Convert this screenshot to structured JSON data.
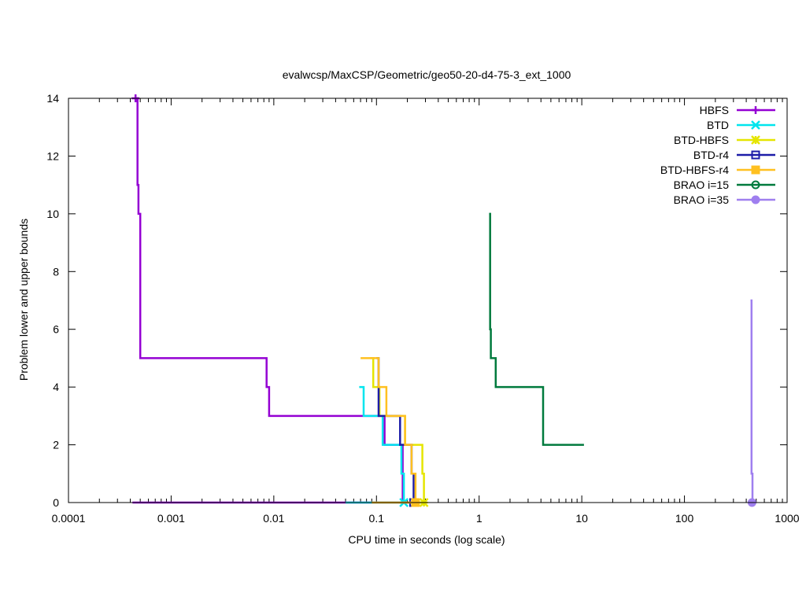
{
  "chart_data": {
    "type": "line",
    "title": "evalwcsp/MaxCSP/Geometric/geo50-20-d4-75-3_ext_1000",
    "xlabel": "CPU time in seconds (log scale)",
    "ylabel": "Problem lower and upper bounds",
    "xscale": "log",
    "xlim": [
      0.0001,
      1000
    ],
    "ylim": [
      0,
      14
    ],
    "xticks": [
      {
        "value": 0.0001,
        "label": "0.0001"
      },
      {
        "value": 0.001,
        "label": "0.001"
      },
      {
        "value": 0.01,
        "label": "0.01"
      },
      {
        "value": 0.1,
        "label": "0.1"
      },
      {
        "value": 1,
        "label": "1"
      },
      {
        "value": 10,
        "label": "10"
      },
      {
        "value": 100,
        "label": "100"
      },
      {
        "value": 1000,
        "label": "1000"
      }
    ],
    "yticks": [
      {
        "value": 0,
        "label": "0"
      },
      {
        "value": 2,
        "label": "2"
      },
      {
        "value": 4,
        "label": "4"
      },
      {
        "value": 6,
        "label": "6"
      },
      {
        "value": 8,
        "label": "8"
      },
      {
        "value": 10,
        "label": "10"
      },
      {
        "value": 12,
        "label": "12"
      },
      {
        "value": 14,
        "label": "14"
      }
    ],
    "grid": false,
    "legend_position": "top-right",
    "series": [
      {
        "name": "HBFS",
        "color": "#9400d3",
        "marker": "plus",
        "upper": [
          [
            0.00045,
            14
          ],
          [
            0.00047,
            11
          ],
          [
            0.00048,
            10
          ],
          [
            0.0005,
            5
          ],
          [
            0.0085,
            4
          ],
          [
            0.009,
            3
          ],
          [
            0.12,
            2
          ],
          [
            0.18,
            0
          ]
        ],
        "lower": [
          [
            0.00042,
            0
          ],
          [
            0.18,
            0
          ]
        ],
        "marker_point": [
          0.00045,
          14
        ]
      },
      {
        "name": "BTD",
        "color": "#00e5ee",
        "marker": "x",
        "upper": [
          [
            0.068,
            4
          ],
          [
            0.075,
            3
          ],
          [
            0.115,
            2
          ],
          [
            0.175,
            1
          ],
          [
            0.185,
            0
          ]
        ],
        "lower": [
          [
            0.05,
            0
          ],
          [
            0.185,
            0
          ]
        ],
        "marker_point": [
          0.185,
          0
        ]
      },
      {
        "name": "BTD-HBFS",
        "color": "#e5e500",
        "marker": "star",
        "upper": [
          [
            0.087,
            5
          ],
          [
            0.093,
            4
          ],
          [
            0.107,
            3
          ],
          [
            0.19,
            2
          ],
          [
            0.28,
            1
          ],
          [
            0.29,
            0
          ]
        ],
        "lower": [
          [
            0.18,
            0
          ],
          [
            0.29,
            0
          ]
        ],
        "marker_point": [
          0.29,
          0
        ]
      },
      {
        "name": "BTD-r4",
        "color": "#1c1ca8",
        "marker": "square",
        "upper": [
          [
            0.1,
            5
          ],
          [
            0.105,
            3
          ],
          [
            0.17,
            2
          ],
          [
            0.22,
            1
          ],
          [
            0.23,
            0
          ]
        ],
        "lower": [
          [
            0.17,
            0
          ],
          [
            0.23,
            0
          ]
        ],
        "marker_point": [
          0.23,
          0
        ]
      },
      {
        "name": "BTD-HBFS-r4",
        "color": "#ffc020",
        "marker": "square-filled",
        "upper": [
          [
            0.07,
            5
          ],
          [
            0.105,
            4
          ],
          [
            0.125,
            3
          ],
          [
            0.19,
            2
          ],
          [
            0.22,
            1
          ],
          [
            0.24,
            0
          ]
        ],
        "lower": [
          [
            0.09,
            0
          ],
          [
            0.24,
            0
          ]
        ],
        "marker_point": [
          0.24,
          0
        ]
      },
      {
        "name": "BRAO i=15",
        "color": "#007a3d",
        "marker": "circle",
        "upper": [
          [
            1.25,
            10
          ],
          [
            1.28,
            6
          ],
          [
            1.3,
            5
          ],
          [
            1.45,
            4
          ],
          [
            4.2,
            2
          ],
          [
            10.5,
            2
          ]
        ],
        "lower": [],
        "marker_point": null
      },
      {
        "name": "BRAO i=35",
        "color": "#9f7fef",
        "marker": "circle-filled",
        "upper": [
          [
            440,
            7
          ],
          [
            450,
            1
          ],
          [
            460,
            0
          ]
        ],
        "lower": [
          [
            450,
            0
          ],
          [
            460,
            0
          ]
        ],
        "marker_point": [
          455,
          0
        ]
      }
    ]
  }
}
